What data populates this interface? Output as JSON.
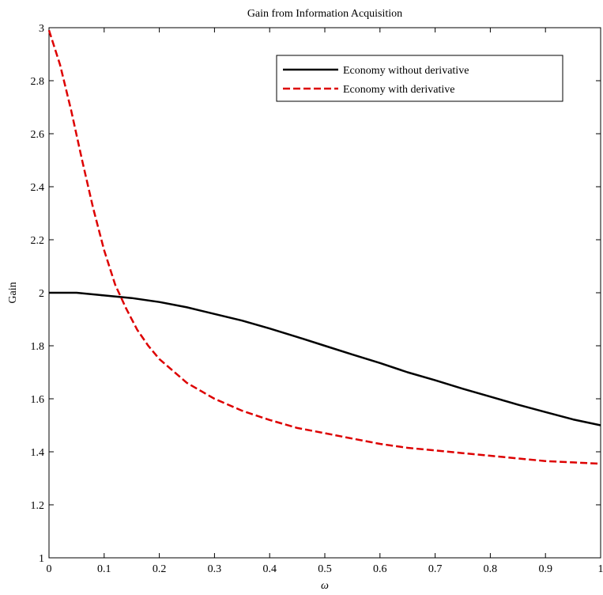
{
  "chart_data": {
    "type": "line",
    "title": "Gain from Information Acquisition",
    "xlabel": "ω",
    "ylabel": "Gain",
    "xlim": [
      0,
      1
    ],
    "ylim": [
      1,
      3
    ],
    "xticks": [
      "0",
      "0.1",
      "0.2",
      "0.3",
      "0.4",
      "0.5",
      "0.6",
      "0.7",
      "0.8",
      "0.9",
      "1"
    ],
    "yticks": [
      "1",
      "1.2",
      "1.4",
      "1.6",
      "1.8",
      "2",
      "2.2",
      "2.4",
      "2.6",
      "2.8",
      "3"
    ],
    "grid": false,
    "legend_position": "top-right",
    "series": [
      {
        "name": "Economy without derivative",
        "color": "#000000",
        "style": "solid",
        "x": [
          0,
          0.05,
          0.1,
          0.15,
          0.2,
          0.25,
          0.3,
          0.35,
          0.4,
          0.45,
          0.5,
          0.55,
          0.6,
          0.65,
          0.7,
          0.75,
          0.8,
          0.85,
          0.9,
          0.95,
          1
        ],
        "y": [
          2.0,
          2.0,
          1.99,
          1.98,
          1.965,
          1.945,
          1.92,
          1.895,
          1.865,
          1.833,
          1.8,
          1.767,
          1.735,
          1.7,
          1.67,
          1.638,
          1.608,
          1.578,
          1.55,
          1.522,
          1.5
        ]
      },
      {
        "name": "Economy with derivative",
        "color": "#dd0000",
        "style": "dashed",
        "x": [
          0,
          0.02,
          0.04,
          0.06,
          0.08,
          0.1,
          0.12,
          0.14,
          0.16,
          0.18,
          0.2,
          0.25,
          0.3,
          0.35,
          0.4,
          0.45,
          0.5,
          0.55,
          0.6,
          0.65,
          0.7,
          0.75,
          0.8,
          0.85,
          0.9,
          0.95,
          1
        ],
        "y": [
          2.99,
          2.86,
          2.69,
          2.5,
          2.32,
          2.16,
          2.03,
          1.94,
          1.86,
          1.8,
          1.75,
          1.66,
          1.6,
          1.555,
          1.52,
          1.49,
          1.47,
          1.45,
          1.43,
          1.415,
          1.405,
          1.395,
          1.385,
          1.375,
          1.365,
          1.36,
          1.355
        ]
      }
    ]
  }
}
